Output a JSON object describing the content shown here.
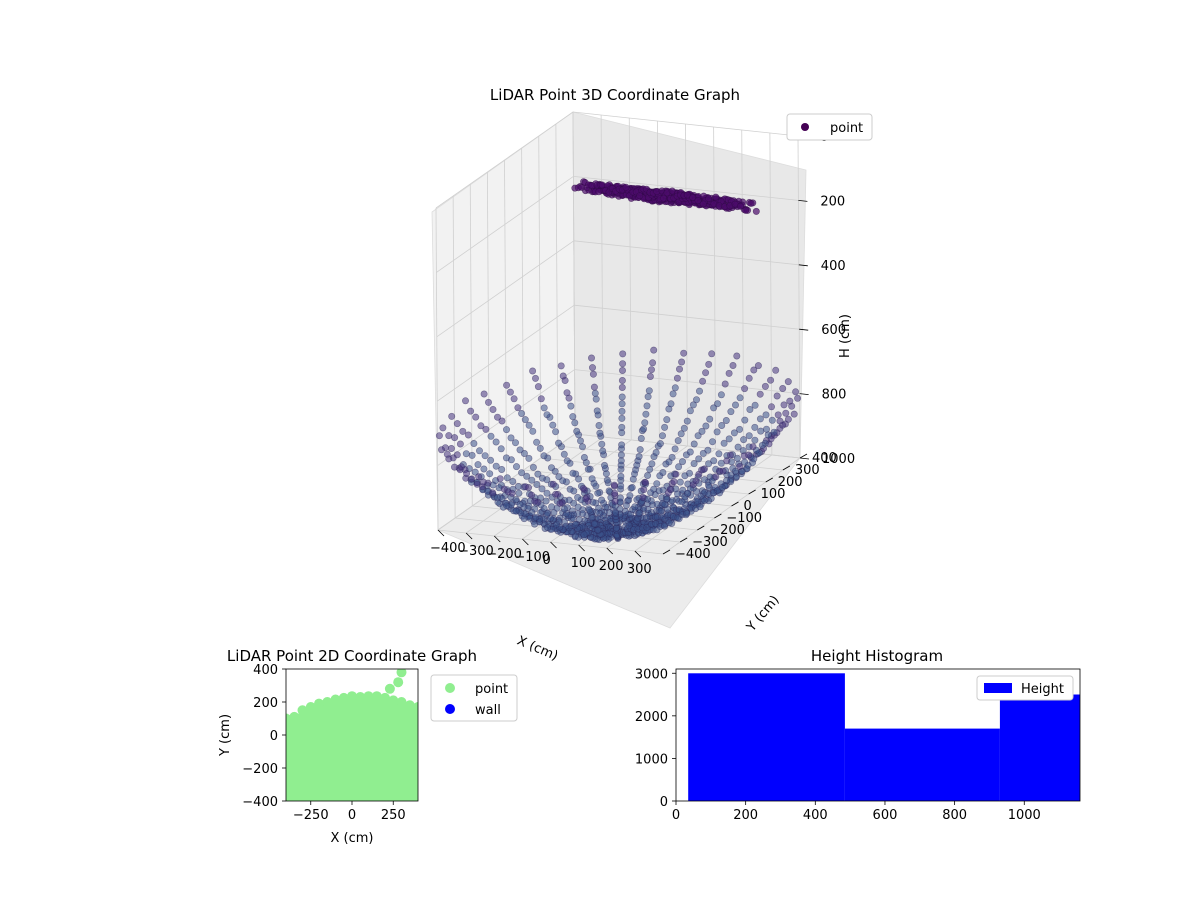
{
  "chart_data": [
    {
      "type": "scatter",
      "projection": "3d",
      "title": "LiDAR Point 3D Coordinate Graph",
      "xlabel": "X (cm)",
      "ylabel": "Y (cm)",
      "zlabel": "H (cm)",
      "x_ticks": [
        "−400",
        "−300",
        "−200",
        "−100",
        "0",
        "100",
        "200",
        "300"
      ],
      "y_ticks": [
        "−400",
        "−300",
        "−200",
        "−100",
        "0",
        "100",
        "200",
        "300",
        "400"
      ],
      "z_ticks": [
        "0",
        "200",
        "400",
        "600",
        "800",
        "1000"
      ],
      "xlim": [
        -400,
        400
      ],
      "ylim": [
        -400,
        400
      ],
      "zlim": [
        0,
        1000
      ],
      "z_inverted": true,
      "grid": true,
      "legend": {
        "position": "upper-right",
        "entries": [
          {
            "label": "point",
            "color": "#440154"
          }
        ]
      },
      "series": [
        {
          "name": "point",
          "colormap": "viridis",
          "groups": [
            {
              "region": "ceiling",
              "x_range": [
                -150,
                250
              ],
              "y_range": [
                0,
                400
              ],
              "h_range": [
                0,
                300
              ],
              "color": "#4b0c6b"
            },
            {
              "region": "floor",
              "x_range": [
                -400,
                400
              ],
              "y_range": [
                -400,
                400
              ],
              "h_range": [
                900,
                1100
              ],
              "color": "#3b528b"
            }
          ]
        }
      ]
    },
    {
      "type": "scatter",
      "title": "LiDAR Point 2D Coordinate Graph",
      "xlabel": "X (cm)",
      "ylabel": "Y (cm)",
      "x_ticks": [
        "−250",
        "0",
        "250"
      ],
      "y_ticks": [
        "−400",
        "−200",
        "0",
        "200",
        "400"
      ],
      "xlim": [
        -400,
        400
      ],
      "ylim": [
        -400,
        400
      ],
      "grid": false,
      "legend": {
        "position": "outside-right",
        "entries": [
          {
            "label": "point",
            "color": "#90ee90"
          },
          {
            "label": "wall",
            "color": "#0000ff"
          }
        ]
      },
      "series": [
        {
          "name": "point",
          "color": "#90ee90",
          "upper_boundary": [
            [
              -400,
              100
            ],
            [
              -350,
              110
            ],
            [
              -300,
              150
            ],
            [
              -250,
              170
            ],
            [
              -200,
              190
            ],
            [
              -150,
              200
            ],
            [
              -100,
              215
            ],
            [
              -50,
              225
            ],
            [
              0,
              235
            ],
            [
              50,
              230
            ],
            [
              100,
              235
            ],
            [
              150,
              235
            ],
            [
              200,
              225
            ],
            [
              250,
              210
            ],
            [
              300,
              200
            ],
            [
              350,
              180
            ],
            [
              400,
              170
            ]
          ],
          "outliers": [
            [
              230,
              280
            ],
            [
              280,
              320
            ],
            [
              300,
              380
            ]
          ]
        },
        {
          "name": "wall",
          "color": "#0000ff",
          "points": []
        }
      ]
    },
    {
      "type": "bar",
      "title": "Height Histogram",
      "xlabel": "",
      "ylabel": "",
      "x_ticks": [
        "0",
        "200",
        "400",
        "600",
        "800",
        "1000"
      ],
      "y_ticks": [
        "0",
        "1000",
        "2000",
        "3000"
      ],
      "xlim": [
        0,
        1160
      ],
      "ylim": [
        0,
        3100
      ],
      "grid": false,
      "legend": {
        "position": "upper-right",
        "entries": [
          {
            "label": "Height",
            "color": "#0000ff"
          }
        ]
      },
      "series": [
        {
          "name": "Height",
          "color": "#0000ff",
          "bins": [
            {
              "x0": 35,
              "x1": 485,
              "value": 3000
            },
            {
              "x0": 485,
              "x1": 930,
              "value": 1700
            },
            {
              "x0": 930,
              "x1": 1160,
              "value": 2500
            }
          ]
        }
      ]
    }
  ]
}
